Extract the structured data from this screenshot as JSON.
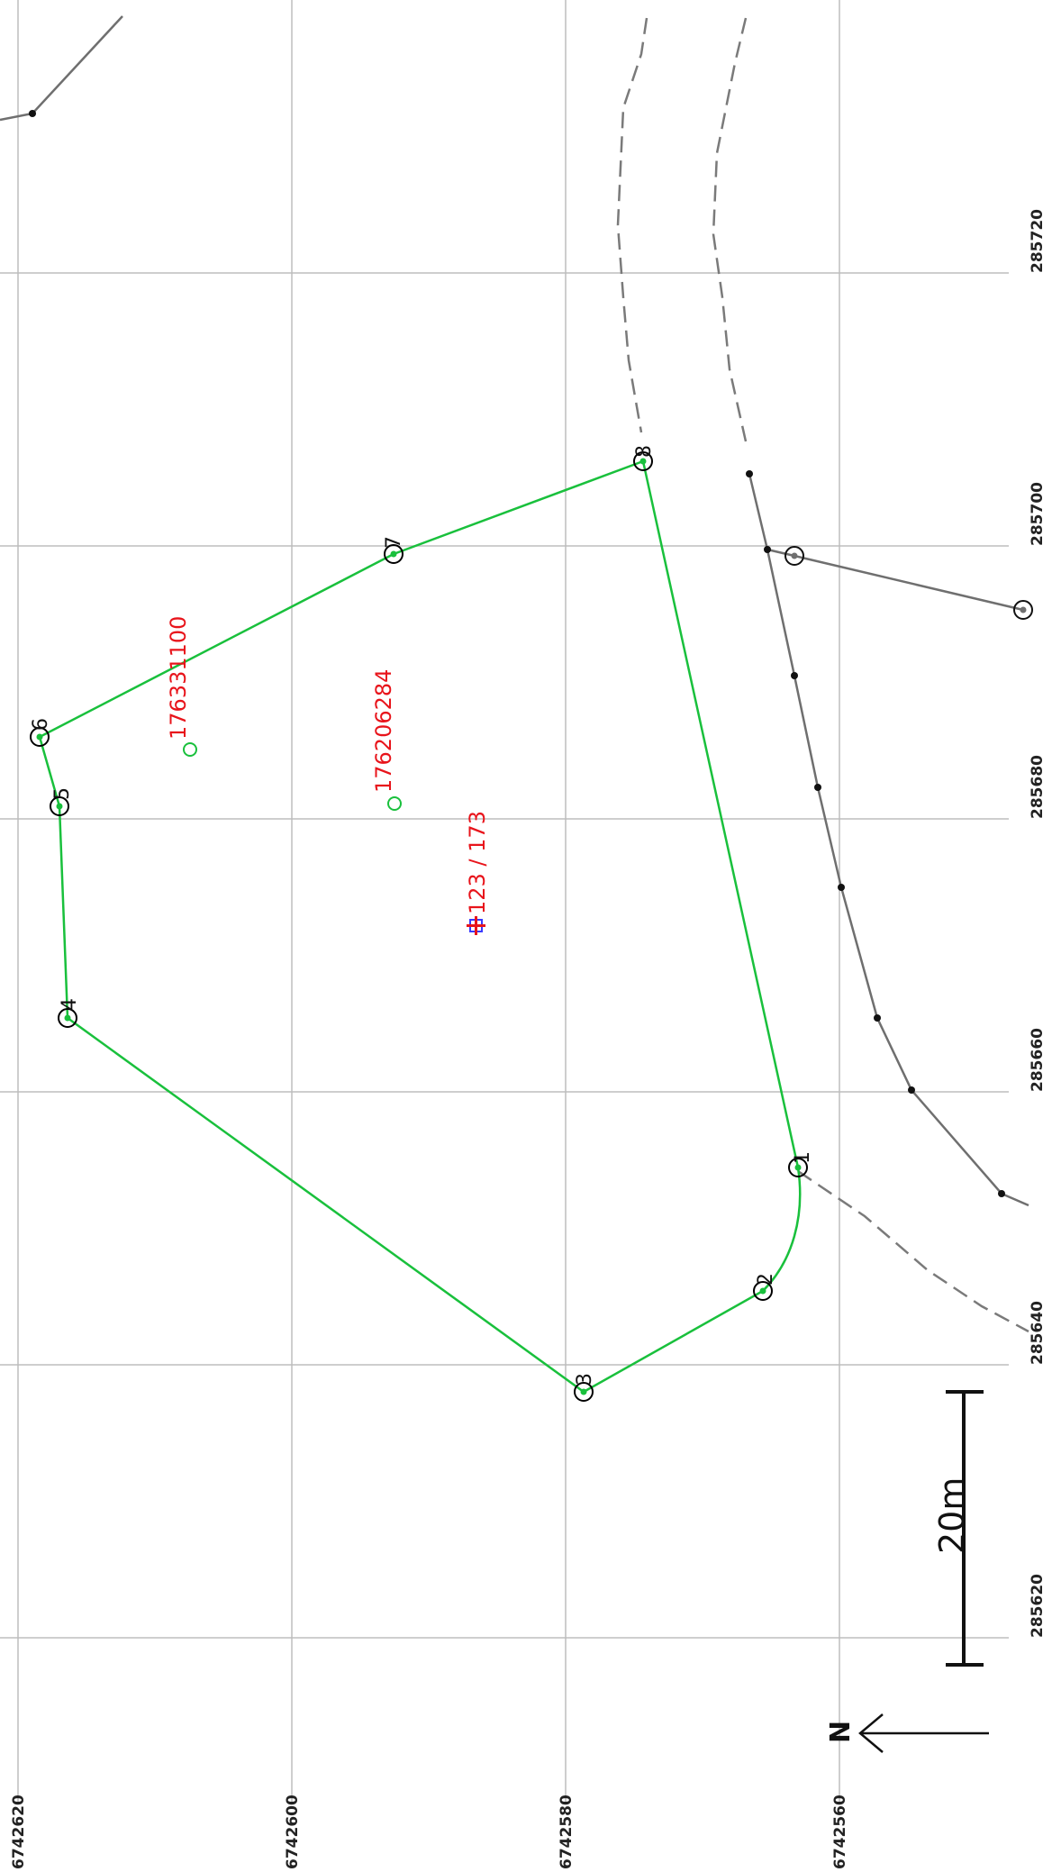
{
  "colors": {
    "boundary": "#19c03c",
    "neighbor_line": "#6f6f6f",
    "label_red": "#e8141b",
    "grid": "#bdbdbd",
    "vertex_marker": "#000000"
  },
  "grid": {
    "easting_labels": [
      "285620",
      "285640",
      "285660",
      "285680",
      "285700",
      "285720"
    ],
    "northing_labels": [
      "6742560",
      "6742580",
      "6742600",
      "6742620"
    ]
  },
  "boundary": {
    "vertex_labels": [
      "1",
      "2",
      "3",
      "4",
      "5",
      "6",
      "7",
      "8"
    ]
  },
  "parcel_labels": {
    "parcel_a": "176331100",
    "parcel_b": "176206284",
    "property_id": "123 / 173"
  },
  "scale_bar": {
    "label": "20m"
  },
  "north_arrow": {
    "label": "N",
    "icon": "north-arrow-icon"
  }
}
